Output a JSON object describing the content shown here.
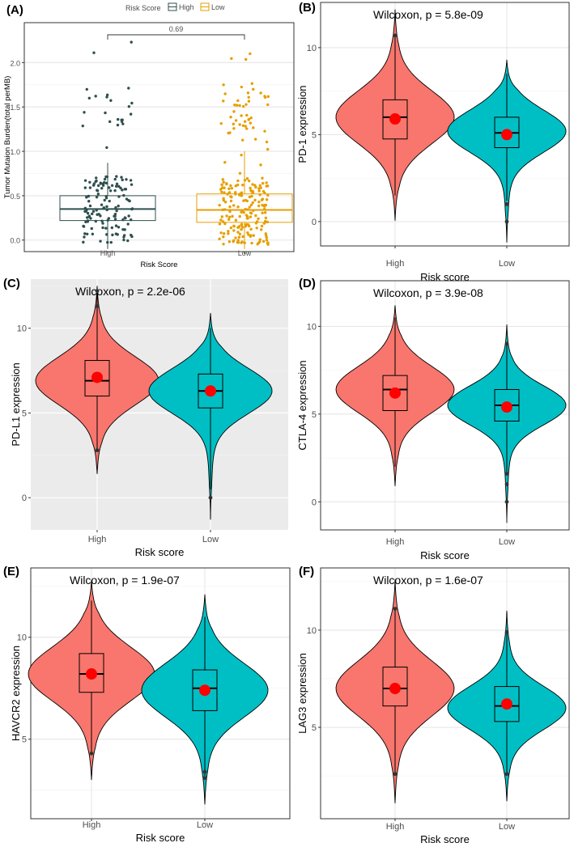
{
  "figure": {
    "colors": {
      "high_violin": "#F8766D",
      "low_violin": "#00BFC4",
      "mean_dot": "#FF0000",
      "high_box": "#2F4F4F",
      "low_box": "#E69F00",
      "panel_bg_grey": "#EBEBEB"
    }
  },
  "chart_data": [
    {
      "id": "A",
      "panel_label": "(A)",
      "type": "box-jitter",
      "legend_title": "Risk Score",
      "legend_position": "top",
      "categories": [
        "High",
        "Low"
      ],
      "xlabel": "Risk Score",
      "ylabel": "Tumor Mutaion Burden(total perMB)",
      "ylim": [
        -0.13,
        2.45
      ],
      "yticks": [
        "0.0",
        "0.5",
        "1.0",
        "1.5",
        "2.0"
      ],
      "annotation": "0.69",
      "groups": [
        {
          "name": "High",
          "color": "#2F4F4F",
          "q1": 0.22,
          "median": 0.35,
          "q3": 0.5,
          "whisker_low": -0.1,
          "whisker_high": 0.87,
          "n_points": 150,
          "jitter_max": 2.23
        },
        {
          "name": "Low",
          "color": "#E69F00",
          "q1": 0.2,
          "median": 0.34,
          "q3": 0.52,
          "whisker_low": -0.1,
          "whisker_high": 1.0,
          "n_points": 230,
          "jitter_max": 2.1
        }
      ]
    },
    {
      "id": "B",
      "panel_label": "(B)",
      "type": "violin",
      "grey_bg": false,
      "stat": "Wilcoxon, p = 5.8e-09",
      "categories": [
        "High",
        "Low"
      ],
      "xlabel": "Risk score",
      "ylabel": "PD-1 expression",
      "ylim": [
        -1.4,
        12.6
      ],
      "yticks": [
        "0",
        "5",
        "10"
      ],
      "groups": [
        {
          "name": "High",
          "min": 0.05,
          "max": 12.2,
          "q1": 4.75,
          "median": 6.0,
          "q3": 7.0,
          "mean": 5.9,
          "whisker_low": 1.5,
          "whisker_high": 10.7,
          "outliers": [
            10.7
          ],
          "peak": 6.0,
          "spread": 1.5
        },
        {
          "name": "Low",
          "min": -1.2,
          "max": 9.3,
          "q1": 4.25,
          "median": 5.1,
          "q3": 6.0,
          "mean": 5.0,
          "whisker_low": 1.2,
          "whisker_high": 8.5,
          "outliers": [
            0.0,
            1.0
          ],
          "peak": 5.2,
          "spread": 1.2
        }
      ]
    },
    {
      "id": "C",
      "panel_label": "(C)",
      "type": "violin",
      "grey_bg": true,
      "stat": "Wilcoxon, p = 2.2e-06",
      "categories": [
        "High",
        "Low"
      ],
      "xlabel": "Risk score",
      "ylabel": "PD-L1 expression",
      "ylim": [
        -1.9,
        12.9
      ],
      "yticks": [
        "0",
        "5",
        "10"
      ],
      "groups": [
        {
          "name": "High",
          "min": 1.4,
          "max": 12.5,
          "q1": 6.0,
          "median": 6.9,
          "q3": 8.1,
          "mean": 7.1,
          "whisker_low": 2.8,
          "whisker_high": 12.2,
          "outliers": [
            2.8,
            11.3,
            12.2
          ],
          "peak": 6.9,
          "spread": 1.4
        },
        {
          "name": "Low",
          "min": -1.3,
          "max": 10.9,
          "q1": 5.3,
          "median": 6.3,
          "q3": 7.3,
          "mean": 6.3,
          "whisker_low": 0.5,
          "whisker_high": 10.0,
          "outliers": [
            0.0
          ],
          "peak": 6.3,
          "spread": 1.3
        }
      ]
    },
    {
      "id": "D",
      "panel_label": "(D)",
      "type": "violin",
      "grey_bg": false,
      "stat": "Wilcoxon, p = 3.9e-08",
      "categories": [
        "High",
        "Low"
      ],
      "xlabel": "Risk score",
      "ylabel": "CTLA-4 expression",
      "ylim": [
        -1.6,
        12.6
      ],
      "yticks": [
        "0",
        "5",
        "10"
      ],
      "groups": [
        {
          "name": "High",
          "min": 0.9,
          "max": 11.2,
          "q1": 5.2,
          "median": 6.4,
          "q3": 7.2,
          "mean": 6.2,
          "whisker_low": 2.0,
          "whisker_high": 10.5,
          "outliers": [],
          "peak": 6.4,
          "spread": 1.3
        },
        {
          "name": "Low",
          "min": -1.2,
          "max": 10.1,
          "q1": 4.6,
          "median": 5.5,
          "q3": 6.4,
          "mean": 5.4,
          "whisker_low": 1.6,
          "whisker_high": 9.0,
          "outliers": [
            0.0,
            1.0,
            1.6,
            9.0
          ],
          "peak": 5.5,
          "spread": 1.1
        }
      ]
    },
    {
      "id": "E",
      "panel_label": "(E)",
      "type": "violin",
      "grey_bg": false,
      "stat": "Wilcoxon, p = 1.9e-07",
      "categories": [
        "High",
        "Low"
      ],
      "xlabel": "Risk score",
      "ylabel": "HAVCR2 expression",
      "ylim": [
        1.1,
        13.4
      ],
      "yticks": [
        "5",
        "10"
      ],
      "groups": [
        {
          "name": "High",
          "min": 3.0,
          "max": 12.8,
          "q1": 7.3,
          "median": 8.2,
          "q3": 9.2,
          "mean": 8.2,
          "whisker_low": 4.3,
          "whisker_high": 11.8,
          "outliers": [
            4.3
          ],
          "peak": 8.2,
          "spread": 1.3
        },
        {
          "name": "Low",
          "min": 1.8,
          "max": 12.1,
          "q1": 6.4,
          "median": 7.5,
          "q3": 8.4,
          "mean": 7.4,
          "whisker_low": 3.2,
          "whisker_high": 11.0,
          "outliers": [
            3.1,
            3.4
          ],
          "peak": 7.4,
          "spread": 1.3
        }
      ]
    },
    {
      "id": "F",
      "panel_label": "(F)",
      "type": "violin",
      "grey_bg": false,
      "stat": "Wilcoxon, p = 1.6e-07",
      "categories": [
        "High",
        "Low"
      ],
      "xlabel": "Risk score",
      "ylabel": "LAG3 expression",
      "ylim": [
        0.3,
        13.2
      ],
      "yticks": [
        "5",
        "10"
      ],
      "groups": [
        {
          "name": "High",
          "min": 1.1,
          "max": 12.6,
          "q1": 6.1,
          "median": 7.0,
          "q3": 8.1,
          "mean": 7.0,
          "whisker_low": 2.6,
          "whisker_high": 11.1,
          "outliers": [
            2.6,
            11.1
          ],
          "peak": 7.0,
          "spread": 1.4
        },
        {
          "name": "Low",
          "min": 1.2,
          "max": 11.0,
          "q1": 5.3,
          "median": 6.1,
          "q3": 7.1,
          "mean": 6.2,
          "whisker_low": 2.6,
          "whisker_high": 9.9,
          "outliers": [
            2.6,
            9.9
          ],
          "peak": 6.0,
          "spread": 1.1
        }
      ]
    }
  ]
}
